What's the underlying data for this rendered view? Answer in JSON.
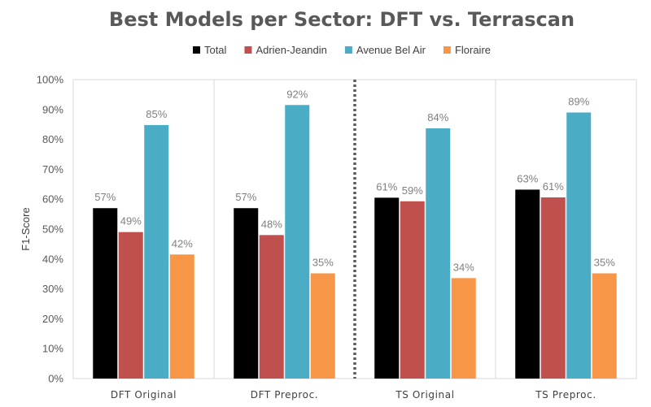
{
  "chart_data": {
    "type": "bar",
    "title": "Best Models per Sector: DFT vs. Terrascan",
    "ylabel": "F1-Score",
    "xlabel": "",
    "ylim": [
      0,
      100
    ],
    "y_ticks": [
      "0%",
      "10%",
      "20%",
      "30%",
      "40%",
      "50%",
      "60%",
      "70%",
      "80%",
      "90%",
      "100%"
    ],
    "categories": [
      "DFT Original",
      "DFT Preproc.",
      "TS Original",
      "TS Preproc."
    ],
    "series": [
      {
        "name": "Total",
        "color": "#000000",
        "values": [
          57,
          57,
          60.5,
          63.2
        ],
        "labels": [
          "57%",
          "57%",
          "61%",
          "63%"
        ]
      },
      {
        "name": "Adrien-Jeandin",
        "color": "#c0504d",
        "values": [
          49,
          48,
          59.3,
          60.6
        ],
        "labels": [
          "49%",
          "48%",
          "59%",
          "61%"
        ]
      },
      {
        "name": "Avenue Bel Air",
        "color": "#4bacc6",
        "values": [
          84.8,
          91.5,
          83.7,
          89
        ],
        "labels": [
          "85%",
          "92%",
          "84%",
          "89%"
        ]
      },
      {
        "name": "Floraire",
        "color": "#f79646",
        "values": [
          41.5,
          35.2,
          33.6,
          35.2
        ],
        "labels": [
          "42%",
          "35%",
          "34%",
          "35%"
        ]
      }
    ],
    "legend_position": "top",
    "grid": "vertical-category-separators",
    "separator_after_category": 1
  }
}
